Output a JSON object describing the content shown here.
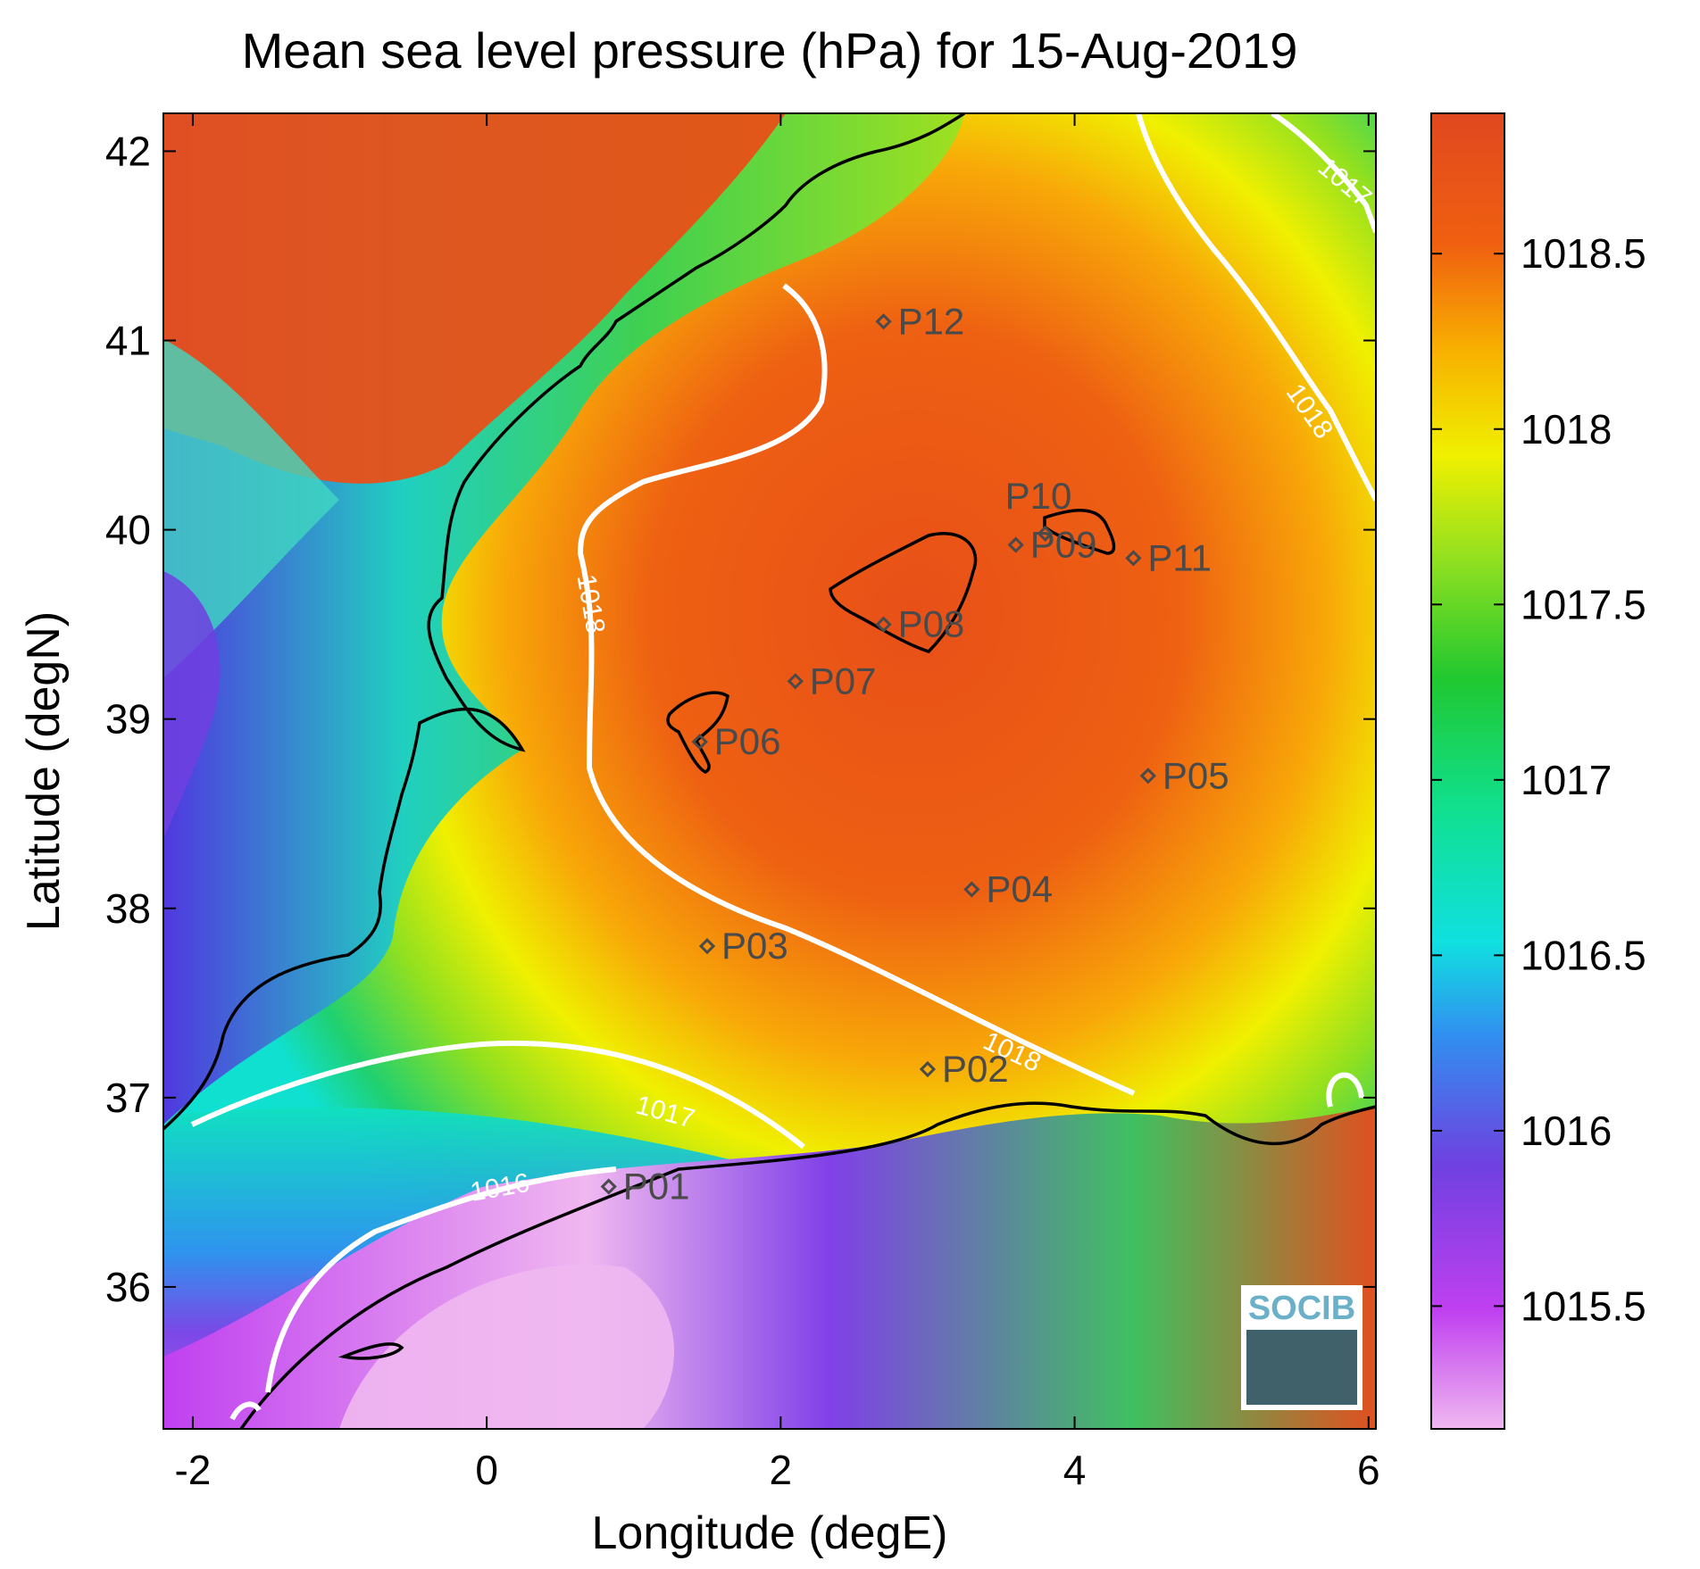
{
  "title": "Mean sea level pressure (hPa) for 15-Aug-2019",
  "xlabel": "Longitude (degE)",
  "ylabel": "Latitude (degN)",
  "xticks": [
    "-2",
    "0",
    "2",
    "4",
    "6"
  ],
  "yticks": [
    "42",
    "41",
    "40",
    "39",
    "38",
    "37",
    "36"
  ],
  "colorbar": {
    "ticks": [
      "1018.5",
      "1018",
      "1017.5",
      "1017",
      "1016.5",
      "1016",
      "1015.5"
    ],
    "range": [
      1015.15,
      1018.9
    ],
    "colors": [
      "#f0b8f0",
      "#c040f0",
      "#7040e0",
      "#3090f0",
      "#10e0e0",
      "#10e090",
      "#20c830",
      "#90e020",
      "#f0f000",
      "#f8b000",
      "#f06010",
      "#e04820"
    ]
  },
  "stations": [
    {
      "id": "P01",
      "lon": 0.83,
      "lat": 36.53
    },
    {
      "id": "P02",
      "lon": 3.0,
      "lat": 37.15
    },
    {
      "id": "P03",
      "lon": 1.5,
      "lat": 37.8
    },
    {
      "id": "P04",
      "lon": 3.3,
      "lat": 38.1
    },
    {
      "id": "P05",
      "lon": 4.5,
      "lat": 38.7
    },
    {
      "id": "P06",
      "lon": 1.45,
      "lat": 38.88
    },
    {
      "id": "P07",
      "lon": 2.1,
      "lat": 39.2
    },
    {
      "id": "P08",
      "lon": 2.7,
      "lat": 39.5
    },
    {
      "id": "P09",
      "lon": 3.6,
      "lat": 39.92
    },
    {
      "id": "P10",
      "lon": 3.8,
      "lat": 39.98
    },
    {
      "id": "P11",
      "lon": 4.4,
      "lat": 39.85
    },
    {
      "id": "P12",
      "lon": 2.7,
      "lat": 41.1
    }
  ],
  "contour_labels": [
    {
      "text": "1018",
      "lon": 0.65,
      "lat": 39.6,
      "rot": 80
    },
    {
      "text": "1018",
      "lon": 3.55,
      "lat": 37.2,
      "rot": 25
    },
    {
      "text": "1018",
      "lon": 5.55,
      "lat": 40.6,
      "rot": 55
    },
    {
      "text": "1017",
      "lon": 5.8,
      "lat": 41.8,
      "rot": 40
    },
    {
      "text": "1017",
      "lon": 1.2,
      "lat": 36.88,
      "rot": 15
    },
    {
      "text": "1016",
      "lon": 0.1,
      "lat": 36.48,
      "rot": -10
    }
  ],
  "logo": {
    "text": "SOCIB"
  }
}
